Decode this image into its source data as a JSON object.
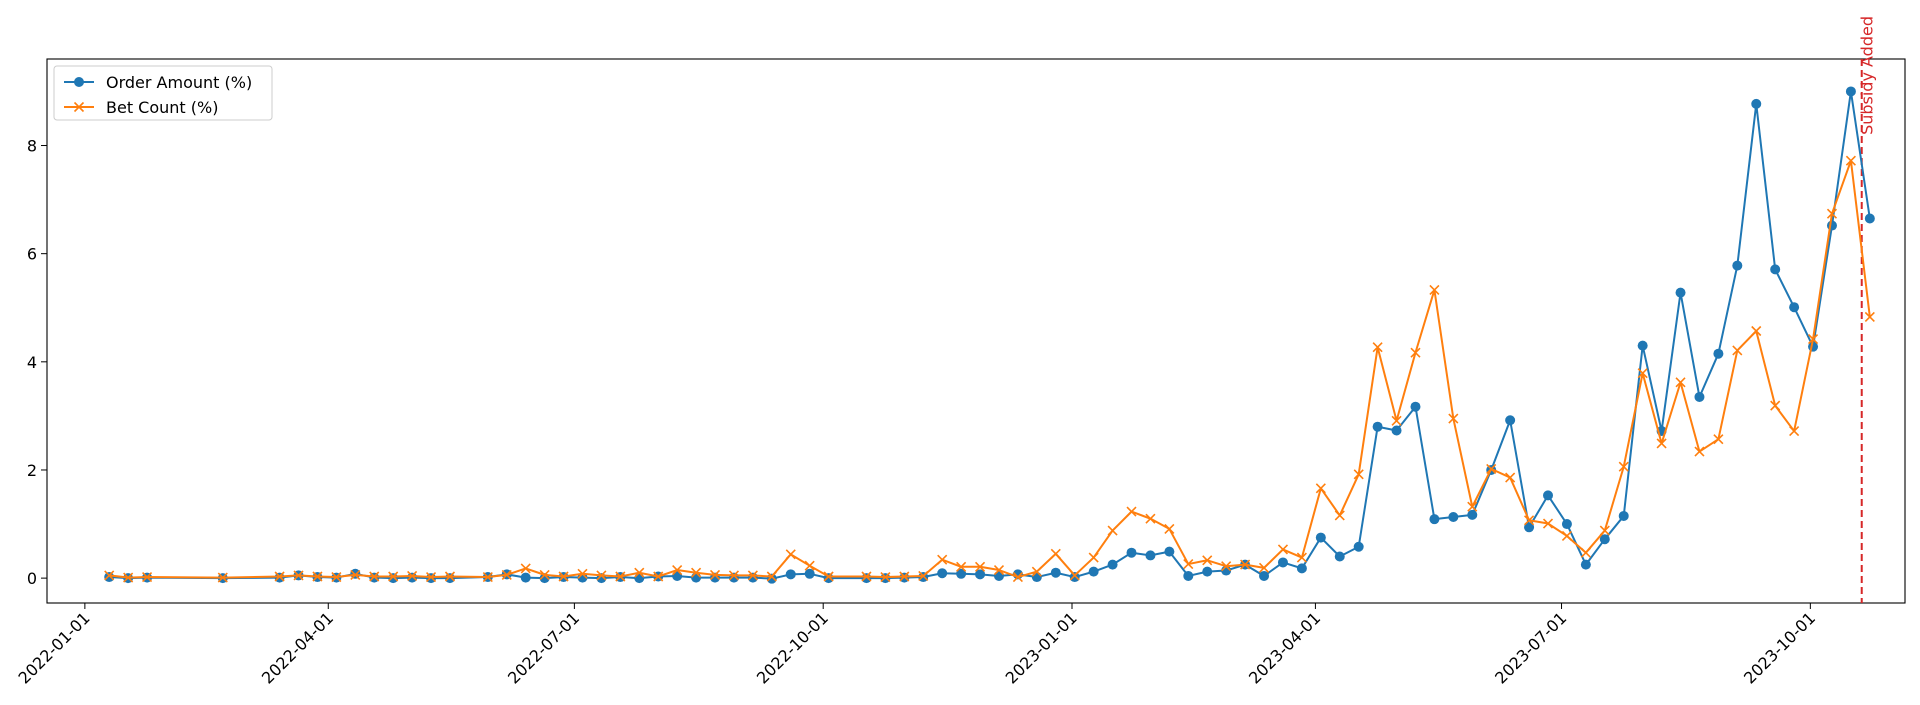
{
  "chart_data": {
    "type": "line",
    "title": "",
    "xlabel": "",
    "ylabel": "",
    "x_axis_type": "date",
    "xlim": [
      "2021-12-18",
      "2023-11-05"
    ],
    "ylim": [
      -0.46,
      9.6
    ],
    "x_ticks": [
      "2022-01-01",
      "2022-04-01",
      "2022-07-01",
      "2022-10-01",
      "2023-01-01",
      "2023-04-01",
      "2023-07-01",
      "2023-10-01"
    ],
    "y_ticks": [
      0,
      2,
      4,
      6,
      8
    ],
    "y_tick_labels": [
      "0",
      "2",
      "4",
      "6",
      "8"
    ],
    "grid": false,
    "legend_position": "top-left",
    "dates": [
      "2022-01-10",
      "2022-01-17",
      "2022-01-24",
      "2022-02-21",
      "2022-03-14",
      "2022-03-21",
      "2022-03-28",
      "2022-04-04",
      "2022-04-11",
      "2022-04-18",
      "2022-04-25",
      "2022-05-02",
      "2022-05-09",
      "2022-05-16",
      "2022-05-30",
      "2022-06-06",
      "2022-06-13",
      "2022-06-20",
      "2022-06-27",
      "2022-07-04",
      "2022-07-11",
      "2022-07-18",
      "2022-07-25",
      "2022-08-01",
      "2022-08-08",
      "2022-08-15",
      "2022-08-22",
      "2022-08-29",
      "2022-09-05",
      "2022-09-12",
      "2022-09-19",
      "2022-09-26",
      "2022-10-03",
      "2022-10-17",
      "2022-10-24",
      "2022-10-31",
      "2022-11-07",
      "2022-11-14",
      "2022-11-21",
      "2022-11-28",
      "2022-12-05",
      "2022-12-12",
      "2022-12-19",
      "2022-12-26",
      "2023-01-02",
      "2023-01-09",
      "2023-01-16",
      "2023-01-23",
      "2023-01-30",
      "2023-02-06",
      "2023-02-13",
      "2023-02-20",
      "2023-02-27",
      "2023-03-06",
      "2023-03-13",
      "2023-03-20",
      "2023-03-27",
      "2023-04-03",
      "2023-04-10",
      "2023-04-17",
      "2023-04-24",
      "2023-05-01",
      "2023-05-08",
      "2023-05-15",
      "2023-05-22",
      "2023-05-29",
      "2023-06-05",
      "2023-06-12",
      "2023-06-19",
      "2023-06-26",
      "2023-07-03",
      "2023-07-10",
      "2023-07-17",
      "2023-07-24",
      "2023-07-31",
      "2023-08-07",
      "2023-08-14",
      "2023-08-21",
      "2023-08-28",
      "2023-09-04",
      "2023-09-11",
      "2023-09-18",
      "2023-09-25",
      "2023-10-02",
      "2023-10-09",
      "2023-10-16",
      "2023-10-23"
    ],
    "series": [
      {
        "name": "Order Amount (%)",
        "color": "#1f77b4",
        "marker": "circle",
        "values": [
          0.02,
          0.0,
          0.01,
          0.0,
          0.01,
          0.05,
          0.02,
          0.01,
          0.08,
          0.01,
          0.0,
          0.01,
          0.0,
          0.0,
          0.02,
          0.07,
          0.01,
          0.0,
          0.02,
          0.01,
          0.0,
          0.02,
          0.0,
          0.03,
          0.04,
          0.01,
          0.01,
          0.01,
          0.01,
          -0.01,
          0.07,
          0.08,
          0.0,
          0.0,
          0.0,
          0.01,
          0.02,
          0.09,
          0.08,
          0.07,
          0.04,
          0.07,
          0.02,
          0.1,
          0.02,
          0.12,
          0.25,
          0.47,
          0.42,
          0.49,
          0.04,
          0.12,
          0.14,
          0.25,
          0.04,
          0.29,
          0.18,
          0.75,
          0.4,
          0.58,
          2.8,
          2.73,
          3.17,
          1.09,
          1.13,
          1.17,
          2.0,
          2.92,
          0.94,
          1.53,
          1.0,
          0.25,
          0.72,
          1.15,
          4.3,
          2.72,
          5.28,
          3.35,
          4.15,
          5.78,
          8.77,
          5.71,
          5.01,
          4.28,
          6.52,
          9.0,
          6.65
        ]
      },
      {
        "name": "Bet Count (%)",
        "color": "#ff7f0e",
        "marker": "x",
        "values": [
          0.05,
          0.01,
          0.02,
          0.01,
          0.03,
          0.05,
          0.03,
          0.02,
          0.06,
          0.03,
          0.03,
          0.04,
          0.02,
          0.03,
          0.02,
          0.06,
          0.18,
          0.06,
          0.03,
          0.08,
          0.05,
          0.03,
          0.1,
          0.03,
          0.15,
          0.1,
          0.06,
          0.05,
          0.05,
          0.03,
          0.44,
          0.23,
          0.03,
          0.03,
          0.02,
          0.03,
          0.04,
          0.34,
          0.21,
          0.21,
          0.15,
          0.02,
          0.12,
          0.45,
          0.05,
          0.38,
          0.88,
          1.23,
          1.1,
          0.91,
          0.26,
          0.33,
          0.22,
          0.25,
          0.19,
          0.53,
          0.38,
          1.66,
          1.16,
          1.92,
          4.27,
          2.91,
          4.17,
          5.33,
          2.95,
          1.32,
          2.02,
          1.86,
          1.07,
          1.01,
          0.78,
          0.47,
          0.88,
          2.06,
          3.79,
          2.49,
          3.62,
          2.34,
          2.57,
          4.21,
          4.57,
          3.19,
          2.72,
          4.42,
          6.74,
          7.72,
          4.83
        ]
      }
    ],
    "annotations": [
      {
        "type": "vline",
        "x": "2023-10-20",
        "color": "#d62728",
        "style": "dashed",
        "label": "Subsidy Added"
      }
    ]
  }
}
